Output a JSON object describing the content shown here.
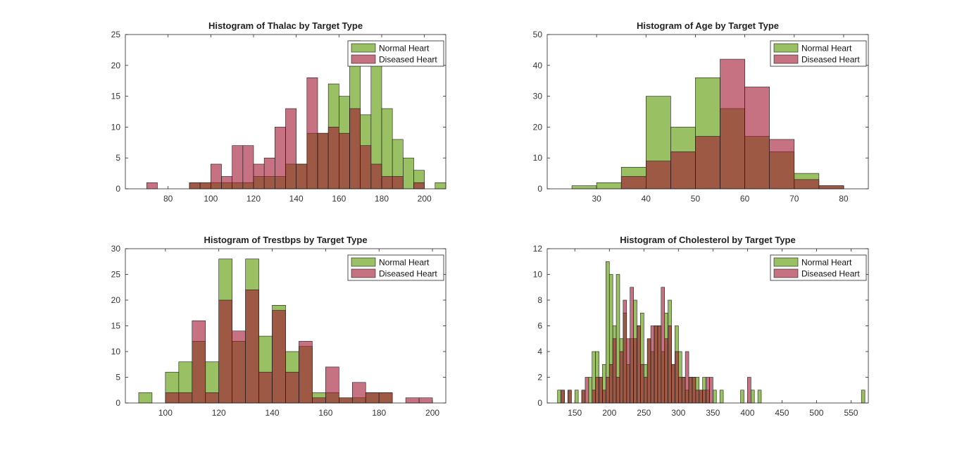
{
  "window": {
    "title": "Figure"
  },
  "legend": {
    "normal": "Normal Heart",
    "diseased": "Diseased Heart"
  },
  "colors": {
    "normal": "#77ac30",
    "diseased": "#a2142f",
    "axis": "#262626",
    "background": "#ffffff"
  },
  "chart_data": [
    {
      "type": "bar",
      "title": "Histogram of Thalac by Target Type",
      "xlabel": "",
      "ylabel": "",
      "xlim": [
        60,
        210
      ],
      "ylim": [
        0,
        25
      ],
      "xticks": [
        80,
        100,
        120,
        140,
        160,
        180,
        200
      ],
      "yticks": [
        0,
        5,
        10,
        15,
        20,
        25
      ],
      "grid": false,
      "legend_position": "top-right",
      "bin_width": 5,
      "series": [
        {
          "name": "Normal Heart",
          "bins": [
            [
              90,
              1
            ],
            [
              95,
              1
            ],
            [
              100,
              1
            ],
            [
              105,
              1
            ],
            [
              110,
              1
            ],
            [
              115,
              1
            ],
            [
              120,
              2
            ],
            [
              125,
              2
            ],
            [
              130,
              2
            ],
            [
              135,
              4
            ],
            [
              140,
              4
            ],
            [
              145,
              9
            ],
            [
              150,
              9
            ],
            [
              155,
              17
            ],
            [
              160,
              15
            ],
            [
              165,
              24
            ],
            [
              170,
              12
            ],
            [
              175,
              20
            ],
            [
              180,
              13
            ],
            [
              185,
              8
            ],
            [
              190,
              5
            ],
            [
              195,
              3
            ],
            [
              205,
              1
            ]
          ]
        },
        {
          "name": "Diseased Heart",
          "bins": [
            [
              70,
              1
            ],
            [
              90,
              1
            ],
            [
              95,
              1
            ],
            [
              100,
              4
            ],
            [
              105,
              2
            ],
            [
              110,
              7
            ],
            [
              115,
              7
            ],
            [
              120,
              4
            ],
            [
              125,
              5
            ],
            [
              130,
              10
            ],
            [
              135,
              13
            ],
            [
              140,
              4
            ],
            [
              145,
              18
            ],
            [
              150,
              9
            ],
            [
              155,
              10
            ],
            [
              160,
              9
            ],
            [
              165,
              13
            ],
            [
              170,
              7
            ],
            [
              175,
              4
            ],
            [
              180,
              2
            ],
            [
              185,
              2
            ],
            [
              195,
              1
            ]
          ]
        }
      ]
    },
    {
      "type": "bar",
      "title": "Histogram of Age by Target Type",
      "xlabel": "",
      "ylabel": "",
      "xlim": [
        20,
        85
      ],
      "ylim": [
        0,
        50
      ],
      "xticks": [
        30,
        40,
        50,
        60,
        70,
        80
      ],
      "yticks": [
        0,
        10,
        20,
        30,
        40,
        50
      ],
      "grid": false,
      "legend_position": "top-right",
      "bin_width": 5,
      "series": [
        {
          "name": "Normal Heart",
          "bins": [
            [
              25,
              1
            ],
            [
              30,
              2
            ],
            [
              35,
              7
            ],
            [
              40,
              30
            ],
            [
              45,
              20
            ],
            [
              50,
              36
            ],
            [
              55,
              26
            ],
            [
              60,
              17
            ],
            [
              65,
              12
            ],
            [
              70,
              5
            ],
            [
              75,
              1
            ]
          ]
        },
        {
          "name": "Diseased Heart",
          "bins": [
            [
              35,
              4
            ],
            [
              40,
              9
            ],
            [
              45,
              12
            ],
            [
              50,
              17
            ],
            [
              55,
              42
            ],
            [
              60,
              33
            ],
            [
              65,
              16
            ],
            [
              70,
              3
            ],
            [
              75,
              1
            ]
          ]
        }
      ]
    },
    {
      "type": "bar",
      "title": "Histogram of Trestbps by Target Type",
      "xlabel": "",
      "ylabel": "",
      "xlim": [
        85,
        205
      ],
      "ylim": [
        0,
        30
      ],
      "xticks": [
        100,
        120,
        140,
        160,
        180,
        200
      ],
      "yticks": [
        0,
        5,
        10,
        15,
        20,
        25,
        30
      ],
      "grid": false,
      "legend_position": "top-right",
      "bin_width": 5,
      "series": [
        {
          "name": "Normal Heart",
          "bins": [
            [
              90,
              2
            ],
            [
              100,
              6
            ],
            [
              105,
              8
            ],
            [
              110,
              12
            ],
            [
              115,
              8
            ],
            [
              120,
              28
            ],
            [
              125,
              12
            ],
            [
              130,
              28
            ],
            [
              135,
              13
            ],
            [
              140,
              19
            ],
            [
              145,
              10
            ],
            [
              150,
              11
            ],
            [
              155,
              2
            ],
            [
              160,
              2
            ],
            [
              165,
              1
            ],
            [
              170,
              1
            ],
            [
              175,
              2
            ],
            [
              180,
              2
            ]
          ]
        },
        {
          "name": "Diseased Heart",
          "bins": [
            [
              100,
              2
            ],
            [
              105,
              2
            ],
            [
              110,
              16
            ],
            [
              115,
              2
            ],
            [
              120,
              20
            ],
            [
              125,
              14
            ],
            [
              130,
              22
            ],
            [
              135,
              6
            ],
            [
              140,
              18
            ],
            [
              145,
              6
            ],
            [
              150,
              12
            ],
            [
              155,
              1
            ],
            [
              160,
              7
            ],
            [
              165,
              1
            ],
            [
              170,
              4
            ],
            [
              175,
              2
            ],
            [
              180,
              2
            ],
            [
              190,
              1
            ],
            [
              195,
              1
            ]
          ]
        }
      ]
    },
    {
      "type": "bar",
      "title": "Histogram of Cholesterol by Target Type",
      "xlabel": "",
      "ylabel": "",
      "xlim": [
        110,
        575
      ],
      "ylim": [
        0,
        12
      ],
      "xticks": [
        150,
        200,
        250,
        300,
        350,
        400,
        450,
        500,
        550
      ],
      "yticks": [
        0,
        2,
        4,
        6,
        8,
        10,
        12
      ],
      "grid": false,
      "legend_position": "top-right",
      "bin_width": 5,
      "series": [
        {
          "name": "Normal Heart",
          "bins": [
            [
              125,
              1
            ],
            [
              130,
              1
            ],
            [
              140,
              1
            ],
            [
              150,
              1
            ],
            [
              160,
              1
            ],
            [
              170,
              2
            ],
            [
              175,
              4
            ],
            [
              180,
              4
            ],
            [
              185,
              2
            ],
            [
              190,
              3
            ],
            [
              195,
              11
            ],
            [
              200,
              10
            ],
            [
              205,
              6
            ],
            [
              210,
              10
            ],
            [
              215,
              5
            ],
            [
              220,
              7
            ],
            [
              225,
              3
            ],
            [
              230,
              5
            ],
            [
              235,
              8
            ],
            [
              240,
              6
            ],
            [
              245,
              7
            ],
            [
              250,
              3
            ],
            [
              255,
              5
            ],
            [
              260,
              4
            ],
            [
              265,
              6
            ],
            [
              270,
              6
            ],
            [
              275,
              4
            ],
            [
              280,
              7
            ],
            [
              285,
              8
            ],
            [
              290,
              3
            ],
            [
              295,
              6
            ],
            [
              300,
              4
            ],
            [
              305,
              2
            ],
            [
              310,
              1
            ],
            [
              315,
              2
            ],
            [
              320,
              2
            ],
            [
              325,
              2
            ],
            [
              330,
              1
            ],
            [
              335,
              2
            ],
            [
              340,
              1
            ],
            [
              350,
              1
            ],
            [
              360,
              1
            ],
            [
              390,
              1
            ],
            [
              405,
              1
            ],
            [
              415,
              1
            ],
            [
              565,
              1
            ]
          ]
        },
        {
          "name": "Diseased Heart",
          "bins": [
            [
              130,
              1
            ],
            [
              140,
              1
            ],
            [
              160,
              1
            ],
            [
              165,
              2
            ],
            [
              175,
              1
            ],
            [
              180,
              2
            ],
            [
              185,
              2
            ],
            [
              190,
              1
            ],
            [
              195,
              2
            ],
            [
              200,
              3
            ],
            [
              205,
              5
            ],
            [
              210,
              2
            ],
            [
              215,
              4
            ],
            [
              220,
              8
            ],
            [
              225,
              5
            ],
            [
              230,
              9
            ],
            [
              235,
              5
            ],
            [
              240,
              6
            ],
            [
              245,
              3
            ],
            [
              250,
              2
            ],
            [
              255,
              5
            ],
            [
              260,
              6
            ],
            [
              265,
              6
            ],
            [
              270,
              6
            ],
            [
              275,
              9
            ],
            [
              280,
              5
            ],
            [
              285,
              6
            ],
            [
              290,
              3
            ],
            [
              295,
              4
            ],
            [
              300,
              2
            ],
            [
              305,
              2
            ],
            [
              310,
              4
            ],
            [
              315,
              2
            ],
            [
              320,
              2
            ],
            [
              325,
              1
            ],
            [
              330,
              1
            ],
            [
              335,
              1
            ],
            [
              340,
              2
            ],
            [
              345,
              2
            ],
            [
              400,
              2
            ]
          ]
        }
      ]
    }
  ]
}
